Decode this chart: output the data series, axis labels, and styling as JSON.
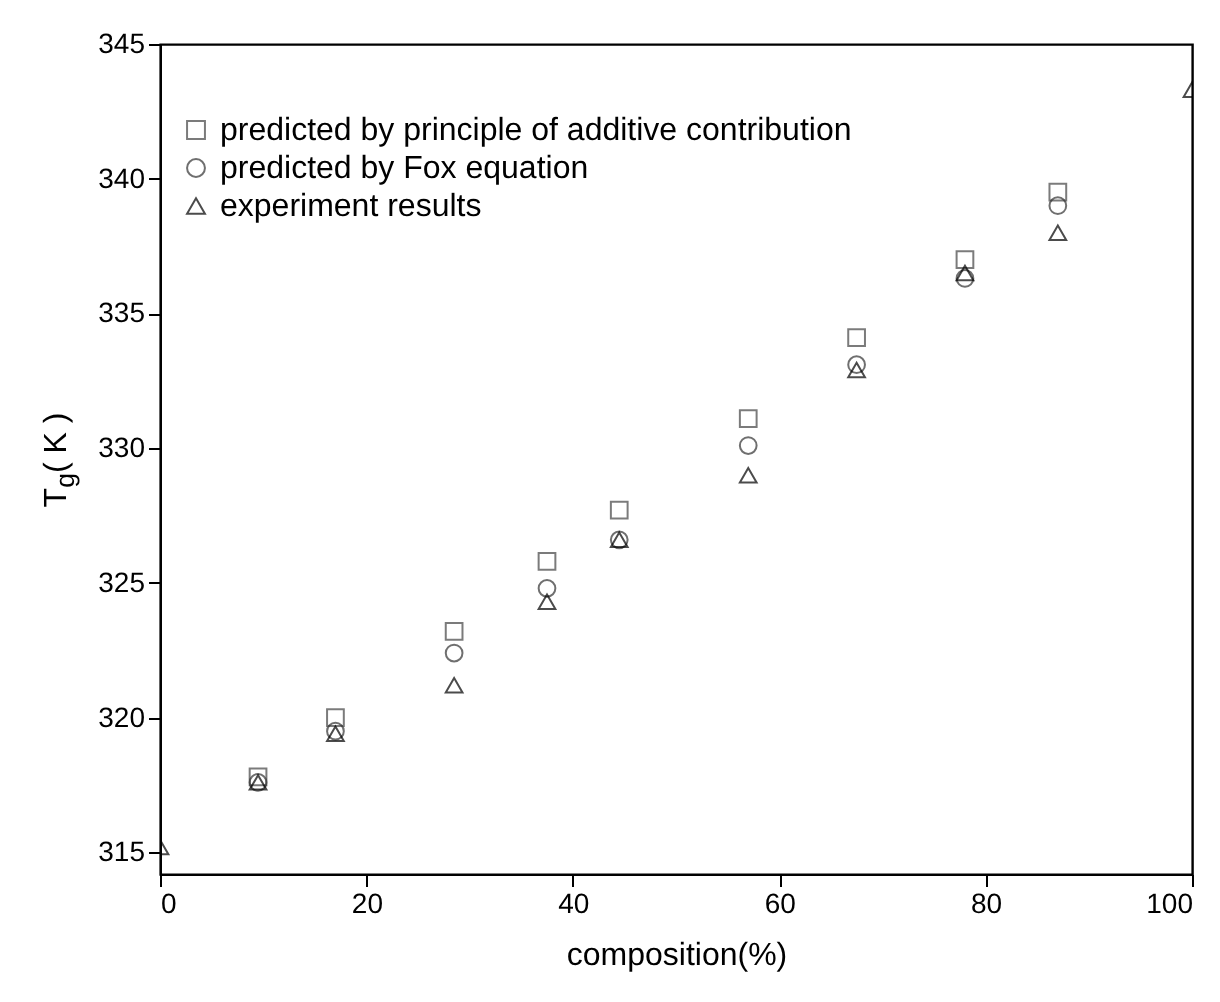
{
  "chart_data": {
    "type": "scatter",
    "xlabel": "composition(%)",
    "ylabel": "T$_{g}$( K )",
    "xlim": [
      0,
      100
    ],
    "xticks": [
      0,
      20,
      40,
      60,
      80,
      100
    ],
    "ylim": [
      314.2,
      345
    ],
    "yticks": [
      315,
      320,
      325,
      330,
      335,
      340,
      345
    ],
    "grid": false,
    "legend": "top left",
    "series": [
      {
        "name": "predicted by principle of additive contribution",
        "color": "#444444",
        "marker": "square",
        "x": [
          9.5,
          17,
          28.5,
          37.5,
          44.5,
          57,
          67.5,
          78,
          87
        ],
        "values": [
          317.8,
          320.0,
          323.2,
          325.8,
          327.7,
          331.1,
          334.1,
          337.0,
          339.5
        ]
      },
      {
        "name": "predicted by Fox equation",
        "color": "#333333",
        "marker": "circle",
        "x": [
          9.5,
          17,
          28.5,
          37.5,
          44.5,
          57,
          67.5,
          78,
          87
        ],
        "values": [
          317.6,
          319.5,
          322.4,
          324.8,
          326.6,
          330.1,
          333.1,
          336.3,
          339.0
        ]
      },
      {
        "name": "experiment results",
        "color": "#000000",
        "marker": "triangle",
        "x": [
          0,
          9.5,
          17,
          28.5,
          37.5,
          44.5,
          57,
          67.5,
          78,
          87,
          100
        ],
        "values": [
          315.2,
          317.6,
          319.4,
          321.2,
          324.3,
          326.6,
          329.0,
          332.9,
          336.5,
          338.0,
          343.3
        ]
      }
    ]
  }
}
